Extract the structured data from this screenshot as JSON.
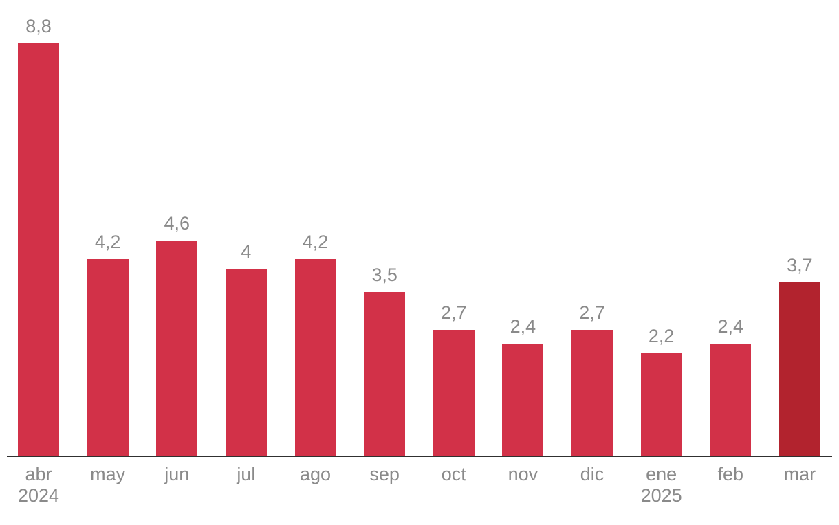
{
  "chart_data": {
    "type": "bar",
    "title": "",
    "xlabel": "",
    "ylabel": "",
    "categories": [
      "abr",
      "may",
      "jun",
      "jul",
      "ago",
      "sep",
      "oct",
      "nov",
      "dic",
      "ene",
      "feb",
      "mar"
    ],
    "category_sublabels": [
      "2024",
      "",
      "",
      "",
      "",
      "",
      "",
      "",
      "",
      "2025",
      "",
      ""
    ],
    "values": [
      8.8,
      4.2,
      4.6,
      4,
      4.2,
      3.5,
      2.7,
      2.4,
      2.7,
      2.2,
      2.4,
      3.7
    ],
    "value_labels": [
      "8,8",
      "4,2",
      "4,6",
      "4",
      "4,2",
      "3,5",
      "2,7",
      "2,4",
      "2,7",
      "2,2",
      "2,4",
      "3,7"
    ],
    "highlight_index": 11,
    "ylim": [
      0,
      8.8
    ],
    "grid": false,
    "legend": false,
    "colors": {
      "bar": "#d23148",
      "bar_highlight": "#b2232e",
      "axis_line": "#303030",
      "label_text": "#8a8a8a"
    }
  }
}
